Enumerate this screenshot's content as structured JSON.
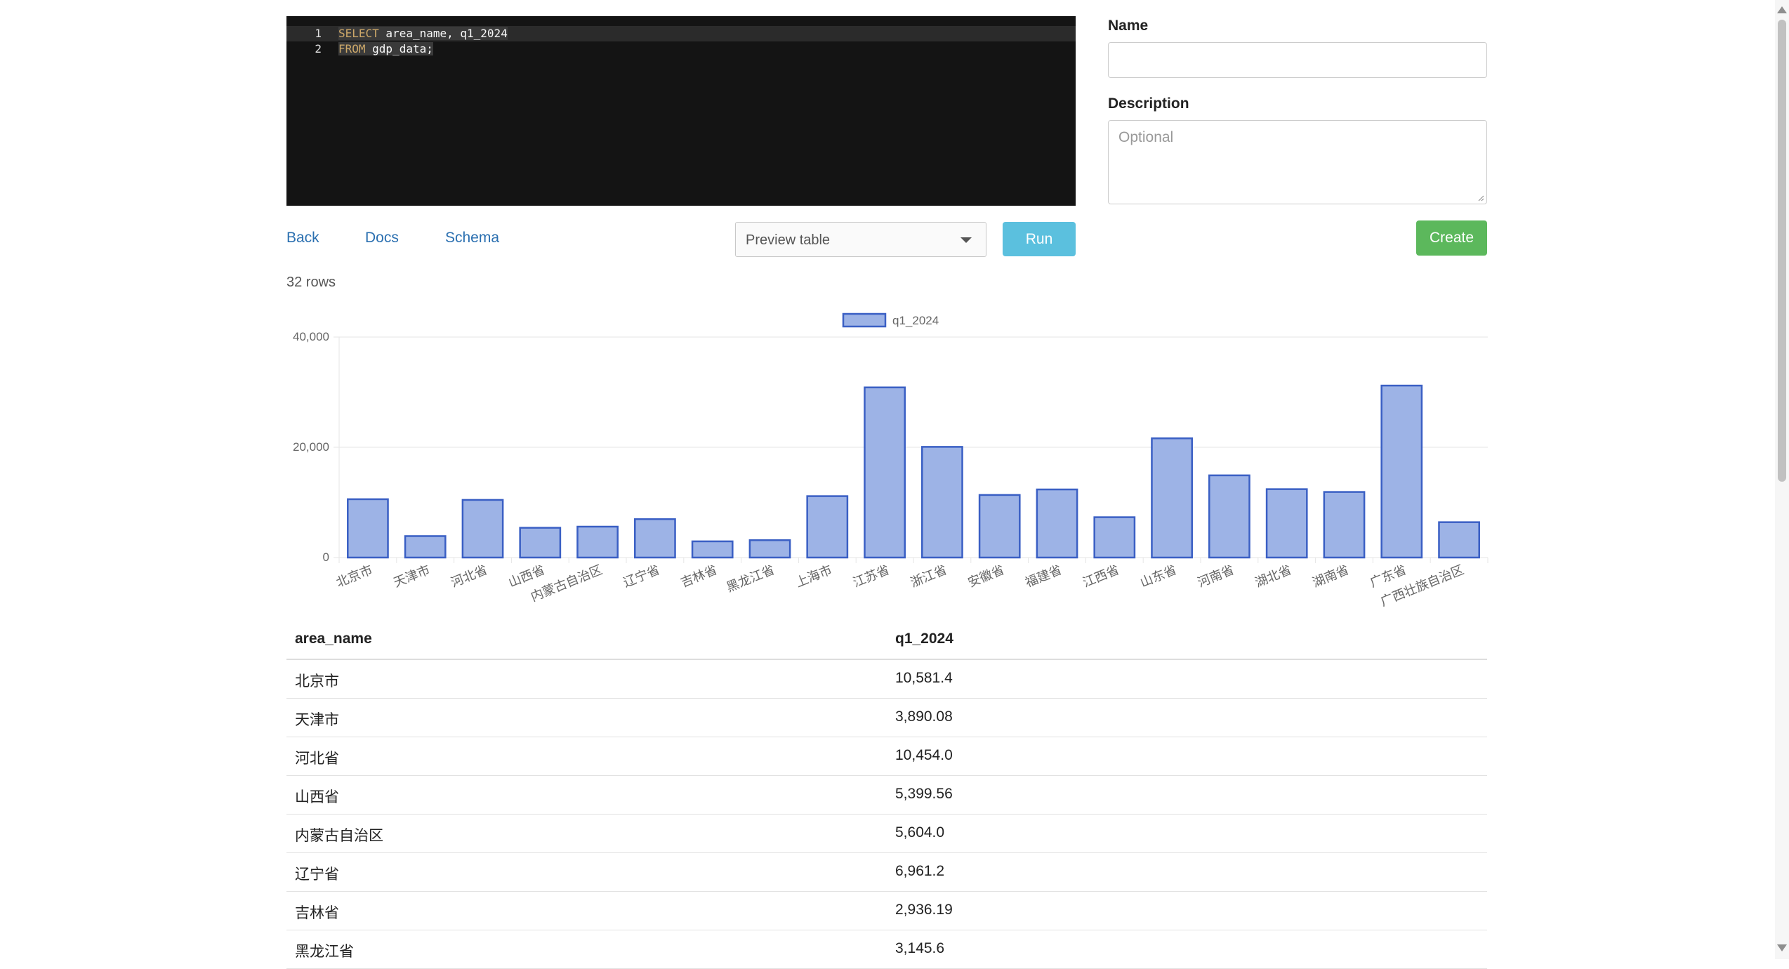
{
  "editor": {
    "lines": [
      {
        "num": "1",
        "keyword": "SELECT",
        "rest": " area_name, q1_2024"
      },
      {
        "num": "2",
        "keyword": "FROM",
        "rest": " gdp_data;"
      }
    ]
  },
  "toolbar": {
    "back": "Back",
    "docs": "Docs",
    "schema": "Schema",
    "select_value": "Preview table",
    "run": "Run"
  },
  "result": {
    "rows_count": "32 rows"
  },
  "form": {
    "name_label": "Name",
    "name_value": "",
    "description_label": "Description",
    "description_placeholder": "Optional",
    "create": "Create"
  },
  "colors": {
    "bar_fill": "#9db3e6",
    "bar_stroke": "#3a5fc4",
    "run_button": "#5bc0de",
    "create_button": "#5cb85c",
    "link": "#2a6fb0",
    "editor_bg": "#141414"
  },
  "chart_data": {
    "type": "bar",
    "legend": "q1_2024",
    "legend_position": "top-center",
    "grid": true,
    "yticks": [
      "0",
      "20,000",
      "40,000"
    ],
    "ylim": [
      0,
      40000
    ],
    "categories": [
      "北京市",
      "天津市",
      "河北省",
      "山西省",
      "内蒙古自治区",
      "辽宁省",
      "吉林省",
      "黑龙江省",
      "上海市",
      "江苏省",
      "浙江省",
      "安徽省",
      "福建省",
      "江西省",
      "山东省",
      "河南省",
      "湖北省",
      "湖南省",
      "广东省",
      "广西壮族自治区"
    ],
    "series": [
      {
        "name": "q1_2024",
        "values": [
          10581.4,
          3890.08,
          10454.0,
          5399.56,
          5604.0,
          6961.2,
          2936.19,
          3145.6,
          11137.0,
          30863.0,
          20080.0,
          11347.0,
          12352.0,
          7316.0,
          21626.0,
          14912.0,
          12405.0,
          11897.0,
          31198.0,
          6413.0
        ]
      }
    ]
  },
  "table": {
    "headers": [
      "area_name",
      "q1_2024"
    ],
    "rows": [
      [
        "北京市",
        "10,581.4"
      ],
      [
        "天津市",
        "3,890.08"
      ],
      [
        "河北省",
        "10,454.0"
      ],
      [
        "山西省",
        "5,399.56"
      ],
      [
        "内蒙古自治区",
        "5,604.0"
      ],
      [
        "辽宁省",
        "6,961.2"
      ],
      [
        "吉林省",
        "2,936.19"
      ],
      [
        "黑龙江省",
        "3,145.6"
      ]
    ]
  }
}
